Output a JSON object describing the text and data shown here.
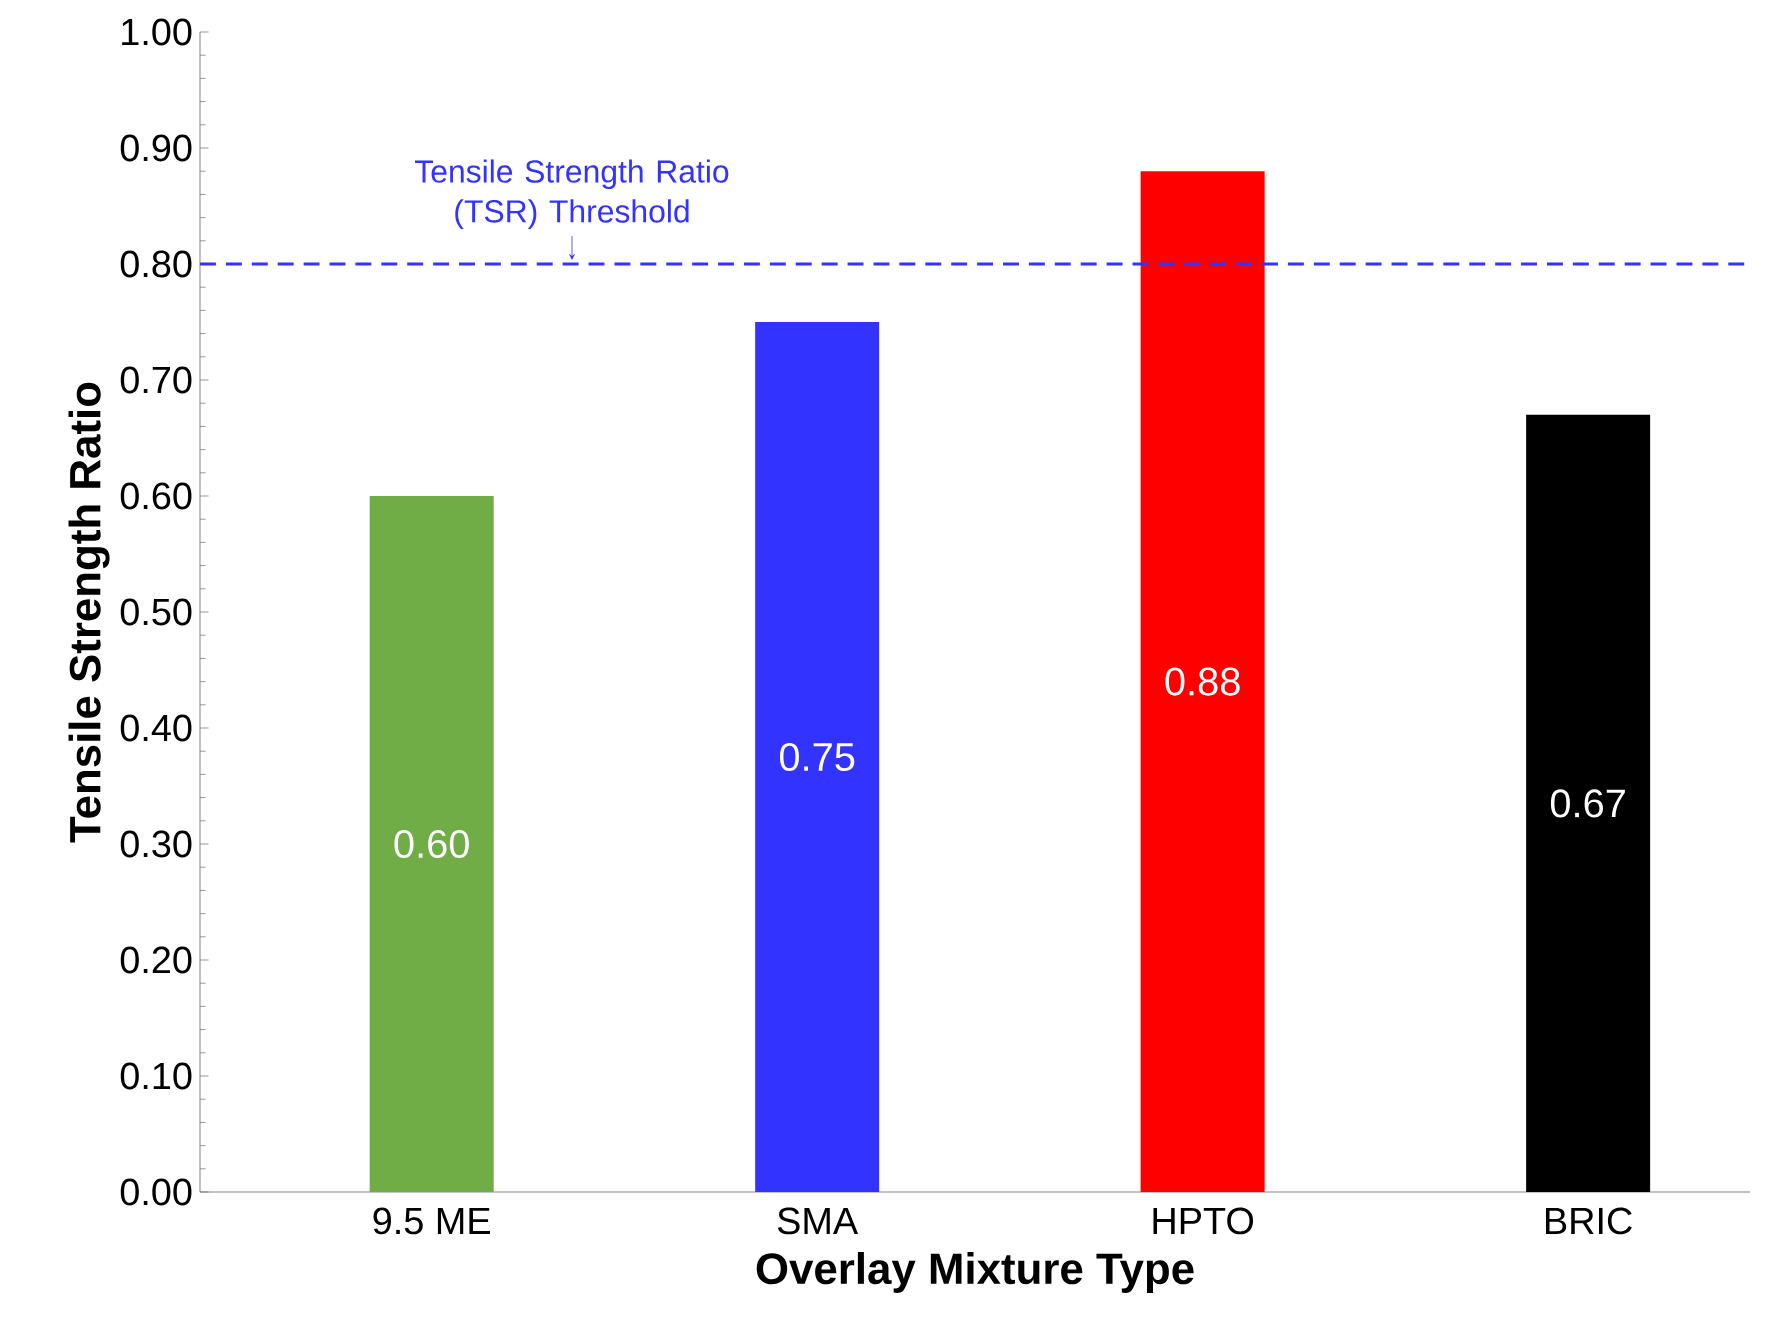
{
  "chart_data": {
    "type": "bar",
    "xlabel": "Overlay Mixture Type",
    "ylabel": "Tensile Strength Ratio",
    "categories": [
      "9.5 ME",
      "SMA",
      "HPTO",
      "BRIC"
    ],
    "values": [
      0.6,
      0.75,
      0.88,
      0.67
    ],
    "value_labels": [
      "0.60",
      "0.75",
      "0.88",
      "0.67"
    ],
    "colors": [
      "#70ad47",
      "#3333ff",
      "#ff0000",
      "#000000"
    ],
    "ylim": [
      0,
      1
    ],
    "yticks": [
      {
        "value": 0,
        "label": "0.00"
      },
      {
        "value": 0.1,
        "label": "0.10"
      },
      {
        "value": 0.2,
        "label": "0.20"
      },
      {
        "value": 0.3,
        "label": "0.30"
      },
      {
        "value": 0.4,
        "label": "0.40"
      },
      {
        "value": 0.5,
        "label": "0.50"
      },
      {
        "value": 0.6,
        "label": "0.60"
      },
      {
        "value": 0.7,
        "label": "0.70"
      },
      {
        "value": 0.8,
        "label": "0.80"
      },
      {
        "value": 0.9,
        "label": "0.90"
      },
      {
        "value": 1,
        "label": "1.00"
      }
    ],
    "ref_lines": [
      {
        "axis": "y",
        "value": 0.8,
        "label": "Tensile Strength Ratio (TSR) Threshold",
        "color": "#3333ff",
        "line_style": "dashed"
      }
    ],
    "grid": false
  }
}
